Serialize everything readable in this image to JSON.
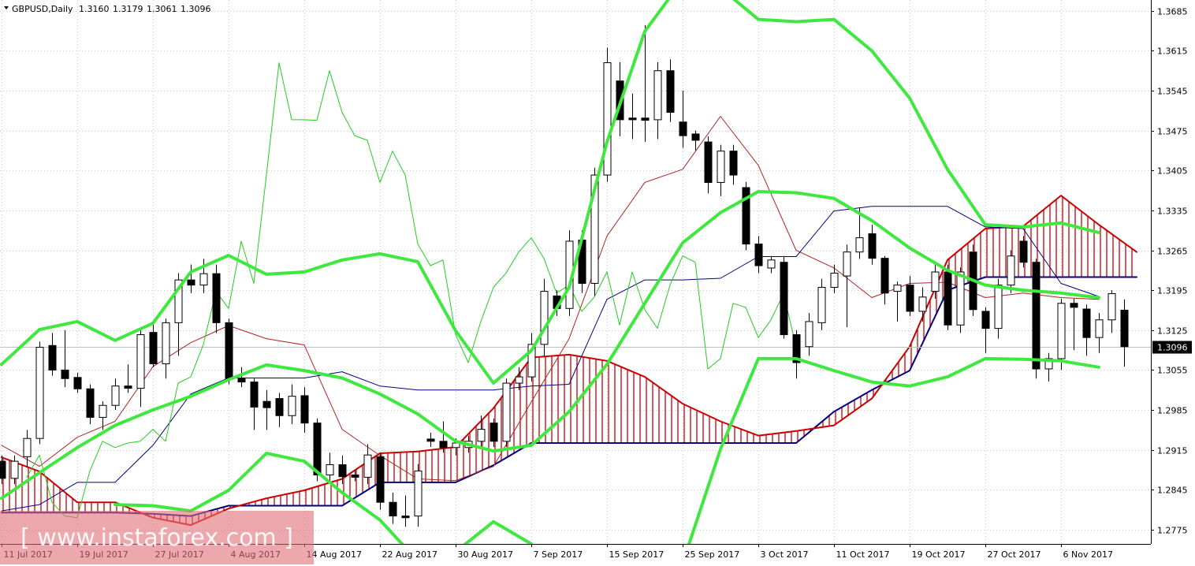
{
  "chart_data": {
    "type": "candlestick",
    "header": {
      "symbol": "GBPUSD,Daily",
      "ohlc": [
        "1.3160",
        "1.3179",
        "1.3061",
        "1.3096"
      ]
    },
    "watermark": "[ www.instaforex.com ]",
    "last_price": {
      "value": 1.3096,
      "label": "1.3096"
    },
    "xlim": [
      -0.125,
      91.125
    ],
    "ylim": [
      1.275,
      1.3704
    ],
    "yticks": [
      1.2775,
      1.2845,
      1.2915,
      1.2985,
      1.3055,
      1.3125,
      1.3195,
      1.3265,
      1.3335,
      1.3405,
      1.3475,
      1.3545,
      1.3615,
      1.3685
    ],
    "xticks": [
      {
        "value": 0,
        "label": "11 Jul 2017"
      },
      {
        "value": 6,
        "label": "19 Jul 2017"
      },
      {
        "value": 12,
        "label": "27 Jul 2017"
      },
      {
        "value": 18,
        "label": "4 Aug 2017"
      },
      {
        "value": 24,
        "label": "14 Aug 2017"
      },
      {
        "value": 30,
        "label": "22 Aug 2017"
      },
      {
        "value": 36,
        "label": "30 Aug 2017"
      },
      {
        "value": 42,
        "label": "7 Sep 2017"
      },
      {
        "value": 48,
        "label": "15 Sep 2017"
      },
      {
        "value": 54,
        "label": "25 Sep 2017"
      },
      {
        "value": 60,
        "label": "3 Oct 2017"
      },
      {
        "value": 66,
        "label": "11 Oct 2017"
      },
      {
        "value": 72,
        "label": "19 Oct 2017"
      },
      {
        "value": 78,
        "label": "27 Oct 2017"
      },
      {
        "value": 84,
        "label": "6 Nov 2017"
      }
    ],
    "grid": true,
    "up_color": "#ffffff",
    "down_color": "#000000",
    "open": [
      1.2895,
      1.2865,
      1.2903,
      1.2935,
      1.3098,
      1.3055,
      1.3042,
      1.3022,
      1.2972,
      1.2993,
      1.3027,
      1.3023,
      1.3121,
      1.3066,
      1.3138,
      1.3213,
      1.3204,
      1.3224,
      1.3138,
      1.304,
      1.3034,
      1.3,
      1.3005,
      1.2975,
      1.301,
      1.2962,
      1.2871,
      1.2889,
      1.2871,
      1.2867,
      1.2903,
      1.2823,
      1.2799,
      1.2799,
      1.2934,
      1.293,
      1.2919,
      1.2919,
      1.293,
      1.2962,
      1.293,
      1.3032,
      1.3043,
      1.31,
      1.3185,
      1.3163,
      1.3283,
      1.3207,
      1.3397,
      1.3562,
      1.3497,
      1.3497,
      1.3494,
      1.358,
      1.349,
      1.3469,
      1.3455,
      1.3384,
      1.3439,
      1.3375,
      1.3276,
      1.3234,
      1.3244,
      1.3117,
      1.3096,
      1.3138,
      1.32,
      1.322,
      1.3262,
      1.3294,
      1.3251,
      1.3193,
      1.3204,
      1.3158,
      1.3193,
      1.3227,
      1.3134,
      1.3262,
      1.3158,
      1.3128,
      1.3204,
      1.3281,
      1.3244,
      1.3057,
      1.3075,
      1.3172,
      1.3162,
      1.3112,
      1.3143,
      1.316
    ],
    "high": [
      1.2905,
      1.2905,
      1.295,
      1.3105,
      1.312,
      1.3125,
      1.305,
      1.303,
      1.3,
      1.304,
      1.3065,
      1.3125,
      1.314,
      1.3145,
      1.3225,
      1.324,
      1.325,
      1.324,
      1.3145,
      1.306,
      1.304,
      1.302,
      1.3015,
      1.303,
      1.3025,
      1.297,
      1.291,
      1.2905,
      1.288,
      1.2925,
      1.291,
      1.284,
      1.2835,
      1.289,
      1.2945,
      1.2965,
      1.2935,
      1.294,
      1.2975,
      1.297,
      1.304,
      1.306,
      1.312,
      1.3215,
      1.3195,
      1.33,
      1.33,
      1.341,
      1.362,
      1.3595,
      1.354,
      1.366,
      1.3595,
      1.36,
      1.3545,
      1.3475,
      1.3465,
      1.345,
      1.345,
      1.3385,
      1.329,
      1.3255,
      1.3255,
      1.3125,
      1.3155,
      1.3215,
      1.324,
      1.3275,
      1.334,
      1.331,
      1.3255,
      1.321,
      1.322,
      1.32,
      1.324,
      1.324,
      1.3235,
      1.3275,
      1.3165,
      1.3215,
      1.3265,
      1.329,
      1.325,
      1.3085,
      1.318,
      1.318,
      1.317,
      1.3155,
      1.3195,
      1.3179
    ],
    "low": [
      1.2855,
      1.2855,
      1.2885,
      1.2925,
      1.3045,
      1.3025,
      1.3015,
      1.296,
      1.295,
      1.2985,
      1.3015,
      1.299,
      1.306,
      1.304,
      1.308,
      1.319,
      1.319,
      1.312,
      1.303,
      1.3025,
      1.295,
      1.295,
      1.2955,
      1.296,
      1.2945,
      1.286,
      1.286,
      1.2855,
      1.286,
      1.2855,
      1.281,
      1.2785,
      1.278,
      1.278,
      1.292,
      1.291,
      1.2905,
      1.291,
      1.292,
      1.292,
      1.292,
      1.302,
      1.3035,
      1.308,
      1.315,
      1.315,
      1.319,
      1.3185,
      1.3385,
      1.3465,
      1.346,
      1.3455,
      1.346,
      1.349,
      1.3445,
      1.344,
      1.3365,
      1.336,
      1.338,
      1.3265,
      1.3225,
      1.3225,
      1.311,
      1.304,
      1.308,
      1.3125,
      1.319,
      1.313,
      1.325,
      1.324,
      1.317,
      1.314,
      1.315,
      1.314,
      1.318,
      1.3125,
      1.312,
      1.315,
      1.3085,
      1.311,
      1.319,
      1.3235,
      1.304,
      1.3035,
      1.3055,
      1.309,
      1.308,
      1.3085,
      1.312,
      1.3061
    ],
    "close": [
      1.2865,
      1.2895,
      1.2935,
      1.3095,
      1.3055,
      1.304,
      1.3022,
      1.2972,
      1.2993,
      1.3027,
      1.3023,
      1.3117,
      1.3066,
      1.3138,
      1.3213,
      1.3204,
      1.3224,
      1.3138,
      1.304,
      1.3034,
      1.299,
      1.2989,
      1.2975,
      1.3009,
      1.2962,
      1.2871,
      1.2889,
      1.2868,
      1.2867,
      1.2906,
      1.2823,
      1.2799,
      1.2796,
      1.2878,
      1.293,
      1.2919,
      1.2927,
      1.293,
      1.2951,
      1.293,
      1.3032,
      1.3043,
      1.31,
      1.3193,
      1.3163,
      1.3281,
      1.3207,
      1.3397,
      1.3594,
      1.3494,
      1.3494,
      1.3493,
      1.358,
      1.3507,
      1.3466,
      1.3458,
      1.3384,
      1.3439,
      1.3397,
      1.3276,
      1.3238,
      1.3248,
      1.3117,
      1.3068,
      1.314,
      1.32,
      1.3225,
      1.3262,
      1.3287,
      1.3251,
      1.319,
      1.3204,
      1.3158,
      1.3183,
      1.3227,
      1.3134,
      1.3227,
      1.3161,
      1.3128,
      1.3204,
      1.3255,
      1.3244,
      1.3057,
      1.3075,
      1.3172,
      1.3165,
      1.3112,
      1.3143,
      1.3189,
      1.3096
    ],
    "line_x": [
      0,
      3,
      6,
      9,
      12,
      15,
      18,
      21,
      24,
      27,
      30,
      33,
      36,
      39,
      42,
      45,
      48,
      51,
      54,
      57,
      60,
      63,
      66,
      69,
      72,
      75,
      78,
      81,
      84,
      87,
      90
    ],
    "cloud": {
      "color_a": "#cc0000",
      "color_b": "#000080",
      "hatch": "#cc0000",
      "span_a": [
        1.2902,
        1.2877,
        1.2823,
        1.2823,
        1.2796,
        1.2783,
        1.2812,
        1.283,
        1.2844,
        1.2864,
        1.2909,
        1.2912,
        1.292,
        1.2988,
        1.3077,
        1.3082,
        1.3071,
        1.3043,
        1.2996,
        1.2965,
        1.294,
        1.2948,
        1.2958,
        1.3005,
        1.3096,
        1.3248,
        1.3303,
        1.3307,
        1.3361,
        1.331,
        1.3262
      ],
      "span_b": [
        1.2805,
        1.2805,
        1.2805,
        1.2805,
        1.2803,
        1.2799,
        1.2817,
        1.2817,
        1.2817,
        1.2817,
        1.2858,
        1.2858,
        1.2858,
        1.2888,
        1.2927,
        1.2927,
        1.2927,
        1.2927,
        1.2927,
        1.2927,
        1.2927,
        1.2927,
        1.2982,
        1.302,
        1.3054,
        1.3195,
        1.3218,
        1.3218,
        1.3218,
        1.3218,
        1.3218
      ]
    },
    "lines": [
      {
        "color": "#b22222",
        "width": 1,
        "values": [
          1.2923,
          1.2886,
          1.2937,
          1.2965,
          1.3061,
          1.3103,
          1.3133,
          1.311,
          1.3099,
          1.2951,
          1.2905,
          1.2864,
          1.2861,
          1.2886,
          1.2999,
          1.311,
          1.329,
          1.3384,
          1.3407,
          1.35,
          1.3414,
          1.3265,
          1.3234,
          1.3182,
          1.3207,
          1.3209,
          1.3182,
          1.319,
          1.3182,
          1.3179,
          null
        ]
      },
      {
        "color": "#000080",
        "width": 1,
        "values": [
          1.2808,
          1.2819,
          1.2858,
          1.2858,
          1.2923,
          1.3013,
          1.3041,
          1.3041,
          1.3041,
          1.3052,
          1.3027,
          1.302,
          1.302,
          1.302,
          1.3027,
          1.303,
          1.3179,
          1.3213,
          1.3213,
          1.3216,
          1.3254,
          1.3254,
          1.3334,
          1.3342,
          1.3342,
          1.3342,
          1.3306,
          1.3303,
          1.3207,
          1.3184,
          null
        ]
      },
      {
        "color": "#22cc22",
        "width": 1,
        "x": [
          2,
          3,
          4,
          5,
          6,
          7,
          8,
          9,
          10,
          11,
          12,
          13,
          14,
          15,
          16,
          17,
          18,
          19,
          20,
          21,
          22,
          23,
          24,
          25,
          26,
          27,
          28,
          29,
          30,
          31,
          32,
          33,
          34,
          35,
          36,
          37,
          38,
          39,
          40,
          41,
          42,
          43,
          44,
          45,
          46,
          47,
          48,
          49,
          50,
          51,
          52,
          53,
          54,
          55,
          56,
          57,
          58,
          59,
          60,
          61,
          62,
          63
        ],
        "values": [
          1.2867,
          1.2906,
          1.2823,
          1.2799,
          1.2796,
          1.2878,
          1.293,
          1.2919,
          1.2927,
          1.293,
          1.2951,
          1.293,
          1.3032,
          1.3043,
          1.31,
          1.3193,
          1.3163,
          1.3281,
          1.3207,
          1.3397,
          1.3594,
          1.3494,
          1.3494,
          1.3493,
          1.358,
          1.3507,
          1.3466,
          1.3458,
          1.3384,
          1.3439,
          1.3397,
          1.3276,
          1.3238,
          1.3248,
          1.3117,
          1.3068,
          1.314,
          1.32,
          1.3225,
          1.3262,
          1.3287,
          1.3251,
          1.319,
          1.3204,
          1.3158,
          1.3183,
          1.3227,
          1.3134,
          1.3227,
          1.3161,
          1.3128,
          1.3204,
          1.3255,
          1.3244,
          1.3057,
          1.3075,
          1.3172,
          1.3165,
          1.3112,
          1.3143,
          1.3189,
          1.3096
        ]
      },
      {
        "color": "#3ee83e",
        "width": 4,
        "values": [
          1.3065,
          1.3126,
          1.314,
          1.3107,
          1.3137,
          1.3227,
          1.3256,
          1.3223,
          1.3227,
          1.3248,
          1.3259,
          1.3245,
          1.3124,
          1.3032,
          1.3089,
          1.32,
          1.3455,
          1.3649,
          1.3739,
          1.3725,
          1.367,
          1.3666,
          1.367,
          1.3615,
          1.3532,
          1.3407,
          1.331,
          1.3306,
          1.3313,
          1.3296,
          null
        ]
      },
      {
        "color": "#3ee83e",
        "width": 4,
        "values": [
          1.283,
          1.2875,
          1.2919,
          1.2958,
          1.2985,
          1.3009,
          1.3038,
          1.3064,
          1.3054,
          1.3041,
          1.3013,
          1.2978,
          1.293,
          1.2913,
          1.2923,
          1.2982,
          1.3065,
          1.3172,
          1.3278,
          1.3331,
          1.3368,
          1.3366,
          1.3356,
          1.3317,
          1.3269,
          1.323,
          1.3204,
          1.3195,
          1.319,
          1.3182,
          null
        ]
      },
      {
        "color": "#3ee83e",
        "width": 4,
        "values": [
          null,
          null,
          null,
          1.2819,
          1.2817,
          1.2808,
          1.2844,
          1.2909,
          1.2895,
          1.284,
          1.2792,
          1.272,
          1.2736,
          1.2789,
          1.275,
          null,
          null,
          null,
          1.2716,
          1.2916,
          1.3075,
          1.3075,
          1.3054,
          1.3034,
          1.3027,
          1.3043,
          1.3075,
          1.3074,
          1.3071,
          1.306,
          null
        ]
      }
    ]
  }
}
